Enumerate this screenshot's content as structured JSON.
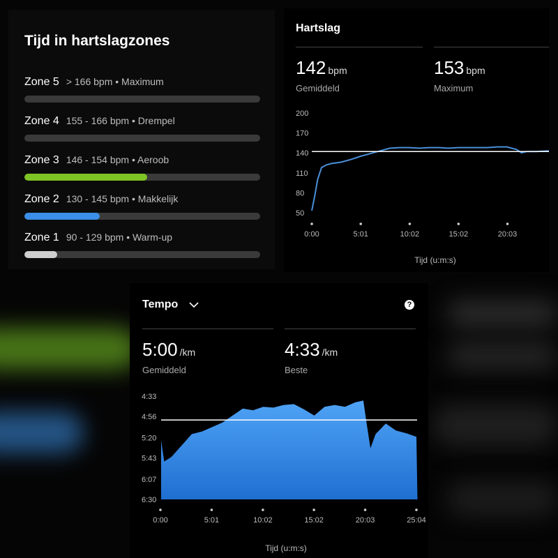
{
  "zones_card": {
    "title": "Tijd in hartslagzones",
    "zones": [
      {
        "name": "Zone 5",
        "range": "> 166 bpm • Maximum",
        "fraction": 0.0,
        "color": "#9e9e9e"
      },
      {
        "name": "Zone 4",
        "range": "155 - 166 bpm • Drempel",
        "fraction": 0.0,
        "color": "#ff8f1f"
      },
      {
        "name": "Zone 3",
        "range": "146 - 154 bpm • Aeroob",
        "fraction": 0.52,
        "color": "#7ec425"
      },
      {
        "name": "Zone 2",
        "range": "130 - 145 bpm • Makkelijk",
        "fraction": 0.32,
        "color": "#3b8fe8"
      },
      {
        "name": "Zone 1",
        "range": "90 - 129 bpm • Warm-up",
        "fraction": 0.14,
        "color": "#cfcfcf"
      }
    ]
  },
  "heart_rate": {
    "title": "Hartslag",
    "average": {
      "value": "142",
      "unit": "bpm",
      "label": "Gemiddeld"
    },
    "maximum": {
      "value": "153",
      "unit": "bpm",
      "label": "Maximum"
    }
  },
  "tempo": {
    "title": "Tempo",
    "average": {
      "value": "5:00",
      "unit": "/km",
      "label": "Gemiddeld"
    },
    "best": {
      "value": "4:33",
      "unit": "/km",
      "label": "Beste"
    }
  },
  "chart_data": [
    {
      "type": "line",
      "xlabel": "Tijd (u:m:s)",
      "ylabel": "",
      "ylim": [
        50,
        200
      ],
      "y_ticks": [
        "200",
        "170",
        "140",
        "110",
        "80",
        "50"
      ],
      "x_ticks": [
        "0:00",
        "5:01",
        "10:02",
        "15:02",
        "20:03"
      ],
      "reference_line": 142,
      "line_color": "#4a90d9",
      "series": [
        {
          "x_minutes": [
            0,
            0.3,
            0.6,
            1,
            1.5,
            2,
            3,
            4,
            5,
            6,
            7,
            8,
            9,
            10,
            11,
            12,
            13,
            14,
            15,
            16,
            17,
            18,
            19,
            20,
            21,
            21.5,
            22,
            23,
            24.3
          ],
          "values": [
            53,
            75,
            100,
            118,
            122,
            124,
            126,
            130,
            135,
            139,
            143,
            147,
            148,
            148,
            147,
            148,
            148,
            147,
            148,
            148,
            148,
            148,
            149,
            149,
            145,
            140,
            142,
            142,
            143
          ]
        }
      ]
    },
    {
      "type": "area",
      "xlabel": "Tijd (u:m:s)",
      "ylabel": "",
      "ylim": [
        "6:30",
        "4:33"
      ],
      "y_ticks": [
        "4:33",
        "4:56",
        "5:20",
        "5:43",
        "6:07",
        "6:30"
      ],
      "x_ticks": [
        "0:00",
        "5:01",
        "10:02",
        "15:02",
        "20:03",
        "25:04"
      ],
      "reference_line": "5:00",
      "fill_color": "#2f7fd6",
      "series": [
        {
          "x_minutes": [
            0,
            0.3,
            1,
            2,
            3,
            4,
            5,
            6,
            7,
            8,
            9,
            10,
            11,
            12,
            13,
            14,
            15,
            16,
            17,
            18,
            19,
            19.8,
            20.1,
            20.5,
            21,
            22,
            23,
            24,
            25,
            25.1
          ],
          "values": [
            "5:23",
            "5:47",
            "5:42",
            "5:29",
            "5:16",
            "5:13",
            "5:08",
            "5:03",
            "4:55",
            "4:47",
            "4:49",
            "4:45",
            "4:46",
            "4:43",
            "4:42",
            "4:48",
            "4:55",
            "4:45",
            "4:43",
            "4:45",
            "4:40",
            "4:38",
            "5:02",
            "5:32",
            "5:16",
            "5:04",
            "5:12",
            "5:15",
            "5:19",
            "6:30"
          ]
        }
      ]
    }
  ]
}
